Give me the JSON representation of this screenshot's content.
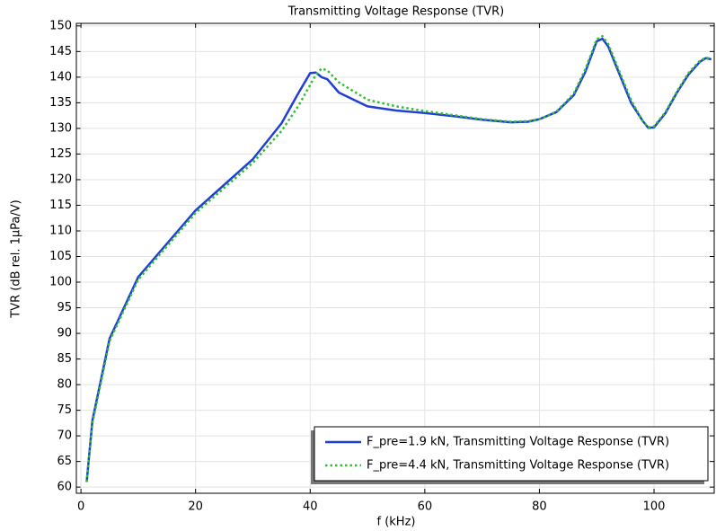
{
  "chart_data": {
    "type": "line",
    "title": "Transmitting Voltage Response (TVR)",
    "x_label": "f (kHz)",
    "y_label": "TVR (dB rel. 1µPa/V)",
    "x": [
      1,
      2,
      5,
      10,
      20,
      30,
      35,
      38,
      40,
      41,
      42,
      43,
      45,
      50,
      55,
      60,
      65,
      70,
      75,
      78,
      80,
      83,
      86,
      88,
      90,
      91,
      92,
      94,
      96,
      98,
      99,
      100,
      102,
      104,
      106,
      108,
      109,
      110
    ],
    "series": [
      {
        "name": "F_pre=1.9 kN, Transmitting Voltage Response (TVR)",
        "color": "#1f3fd6",
        "dash": "solid",
        "values": [
          61,
          73,
          89,
          101,
          114,
          124,
          131,
          137,
          140.8,
          140.9,
          140,
          139.6,
          137,
          134.3,
          133.5,
          133,
          132.4,
          131.7,
          131.2,
          131.3,
          131.8,
          133.2,
          136.5,
          141,
          147,
          147.5,
          146,
          140.5,
          135,
          131.5,
          130.1,
          130.2,
          133,
          137,
          140.5,
          143,
          143.7,
          143.5
        ]
      },
      {
        "name": "F_pre=4.4 kN, Transmitting Voltage Response (TVR)",
        "color": "#2fbf2f",
        "dash": "dotted",
        "values": [
          61,
          72.5,
          88.5,
          100.5,
          113.5,
          123.3,
          129.5,
          134.5,
          138.5,
          140.5,
          141.7,
          141.3,
          139,
          135.6,
          134.3,
          133.4,
          132.6,
          131.8,
          131.3,
          131.4,
          131.8,
          133.3,
          136.8,
          141.5,
          147.4,
          148,
          146.5,
          141,
          135.5,
          131.5,
          130.2,
          130.4,
          133.2,
          137.2,
          140.8,
          143.2,
          143.8,
          143.6
        ]
      }
    ],
    "xlim": [
      -0.8,
      110.5
    ],
    "xticks": [
      0,
      20,
      40,
      60,
      80,
      100
    ],
    "ylim": [
      58.8,
      150.5
    ],
    "yticks": [
      60,
      65,
      70,
      75,
      80,
      85,
      90,
      95,
      100,
      105,
      110,
      115,
      120,
      125,
      130,
      135,
      140,
      145,
      150
    ],
    "grid": true,
    "legend": "lower right"
  }
}
